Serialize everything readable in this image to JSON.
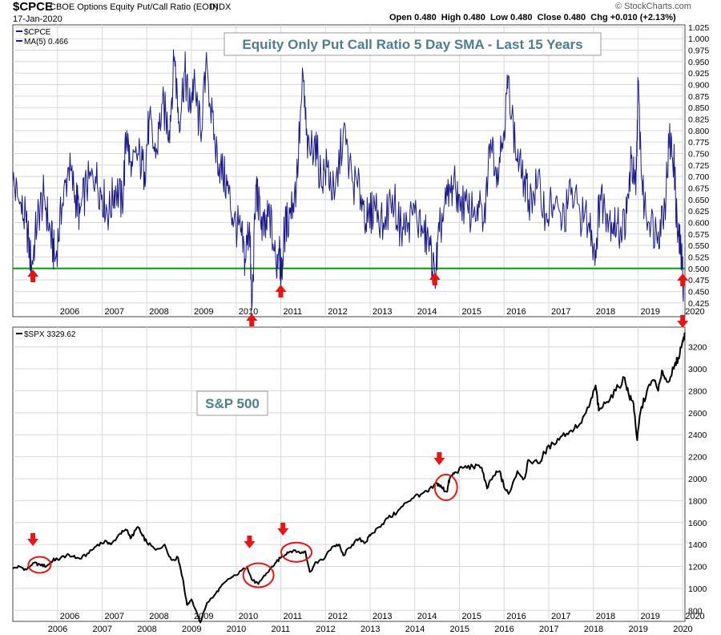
{
  "header": {
    "symbol": "$CPCE",
    "description": "CBOE Options Equity Put/Call Ratio (EOD)",
    "exchange": "INDX",
    "date": "17-Jan-2020",
    "quote": "Open 0.480  High 0.480  Low 0.480  Close 0.480  Chg +0.010 (+2.13%)",
    "watermark": "© StockCharts.com"
  },
  "colors": {
    "ratio_line": "#1a1a8c",
    "spx_line": "#000000",
    "threshold_line": "#00a000",
    "arrow": "#ee1111",
    "circle": "#ee1111",
    "title_text": "#4d7f8a",
    "grid": "#d8d8d8"
  },
  "chart_data": [
    {
      "type": "line",
      "panel": "top",
      "title": "Equity Only Put Call Ratio 5 Day SMA - Last 15 Years",
      "legend": {
        "position": "top-left",
        "entries": [
          "$CPCE",
          "MA(5) 0.466"
        ]
      },
      "ylim": [
        0.395,
        1.03
      ],
      "yticks": [
        "0.425",
        "0.450",
        "0.475",
        "0.500",
        "0.525",
        "0.550",
        "0.575",
        "0.600",
        "0.625",
        "0.650",
        "0.675",
        "0.700",
        "0.725",
        "0.750",
        "0.775",
        "0.800",
        "0.825",
        "0.850",
        "0.875",
        "0.900",
        "0.925",
        "0.950",
        "0.975",
        "1.000",
        "1.025"
      ],
      "xticks": [
        "2006",
        "2007",
        "2008",
        "2009",
        "2010",
        "2011",
        "2012",
        "2013",
        "2014",
        "2015",
        "2016",
        "2017",
        "2018",
        "2019",
        "2020"
      ],
      "xlim": [
        2005.0,
        2020.05
      ],
      "grid": true,
      "threshold": 0.5,
      "series": [
        {
          "values": [
            [
              2005.0,
              0.69
            ],
            [
              2005.15,
              0.64
            ],
            [
              2005.3,
              0.6
            ],
            [
              2005.42,
              0.5
            ],
            [
              2005.55,
              0.61
            ],
            [
              2005.7,
              0.66
            ],
            [
              2005.85,
              0.57
            ],
            [
              2005.95,
              0.52
            ],
            [
              2006.1,
              0.63
            ],
            [
              2006.25,
              0.72
            ],
            [
              2006.4,
              0.66
            ],
            [
              2006.5,
              0.62
            ],
            [
              2006.65,
              0.68
            ],
            [
              2006.85,
              0.7
            ],
            [
              2007.0,
              0.66
            ],
            [
              2007.15,
              0.62
            ],
            [
              2007.3,
              0.68
            ],
            [
              2007.45,
              0.64
            ],
            [
              2007.55,
              0.8
            ],
            [
              2007.65,
              0.7
            ],
            [
              2007.8,
              0.75
            ],
            [
              2007.95,
              0.71
            ],
            [
              2008.05,
              0.82
            ],
            [
              2008.2,
              0.74
            ],
            [
              2008.35,
              0.86
            ],
            [
              2008.5,
              0.8
            ],
            [
              2008.62,
              0.96
            ],
            [
              2008.72,
              0.82
            ],
            [
              2008.85,
              0.93
            ],
            [
              2008.95,
              0.85
            ],
            [
              2009.05,
              0.9
            ],
            [
              2009.2,
              0.8
            ],
            [
              2009.35,
              0.94
            ],
            [
              2009.5,
              0.78
            ],
            [
              2009.65,
              0.72
            ],
            [
              2009.8,
              0.68
            ],
            [
              2009.95,
              0.6
            ],
            [
              2010.1,
              0.58
            ],
            [
              2010.2,
              0.52
            ],
            [
              2010.3,
              0.6
            ],
            [
              2010.35,
              0.41
            ],
            [
              2010.45,
              0.68
            ],
            [
              2010.55,
              0.6
            ],
            [
              2010.65,
              0.58
            ],
            [
              2010.75,
              0.62
            ],
            [
              2010.9,
              0.5
            ],
            [
              2010.97,
              0.57
            ],
            [
              2011.0,
              0.46
            ],
            [
              2011.08,
              0.58
            ],
            [
              2011.2,
              0.62
            ],
            [
              2011.35,
              0.68
            ],
            [
              2011.5,
              0.92
            ],
            [
              2011.6,
              0.74
            ],
            [
              2011.75,
              0.78
            ],
            [
              2011.9,
              0.7
            ],
            [
              2012.05,
              0.72
            ],
            [
              2012.2,
              0.65
            ],
            [
              2012.4,
              0.8
            ],
            [
              2012.6,
              0.69
            ],
            [
              2012.8,
              0.66
            ],
            [
              2012.95,
              0.6
            ],
            [
              2013.1,
              0.64
            ],
            [
              2013.3,
              0.6
            ],
            [
              2013.5,
              0.66
            ],
            [
              2013.7,
              0.58
            ],
            [
              2013.85,
              0.6
            ],
            [
              2014.0,
              0.62
            ],
            [
              2014.2,
              0.58
            ],
            [
              2014.35,
              0.55
            ],
            [
              2014.45,
              0.47
            ],
            [
              2014.55,
              0.58
            ],
            [
              2014.7,
              0.64
            ],
            [
              2014.85,
              0.68
            ],
            [
              2015.0,
              0.66
            ],
            [
              2015.2,
              0.62
            ],
            [
              2015.4,
              0.64
            ],
            [
              2015.55,
              0.6
            ],
            [
              2015.7,
              0.78
            ],
            [
              2015.85,
              0.72
            ],
            [
              2016.0,
              0.8
            ],
            [
              2016.1,
              0.92
            ],
            [
              2016.25,
              0.76
            ],
            [
              2016.4,
              0.7
            ],
            [
              2016.55,
              0.65
            ],
            [
              2016.75,
              0.68
            ],
            [
              2016.95,
              0.62
            ],
            [
              2017.1,
              0.64
            ],
            [
              2017.3,
              0.6
            ],
            [
              2017.5,
              0.66
            ],
            [
              2017.7,
              0.62
            ],
            [
              2017.9,
              0.6
            ],
            [
              2018.05,
              0.54
            ],
            [
              2018.15,
              0.66
            ],
            [
              2018.3,
              0.62
            ],
            [
              2018.45,
              0.6
            ],
            [
              2018.6,
              0.58
            ],
            [
              2018.75,
              0.62
            ],
            [
              2018.85,
              0.74
            ],
            [
              2018.95,
              0.66
            ],
            [
              2019.0,
              0.9
            ],
            [
              2019.1,
              0.66
            ],
            [
              2019.25,
              0.6
            ],
            [
              2019.45,
              0.58
            ],
            [
              2019.6,
              0.64
            ],
            [
              2019.7,
              0.78
            ],
            [
              2019.8,
              0.74
            ],
            [
              2019.88,
              0.58
            ],
            [
              2019.95,
              0.54
            ],
            [
              2020.02,
              0.466
            ]
          ]
        }
      ],
      "markers": [
        2005.45,
        2010.35,
        2011.0,
        2014.45,
        2020.0
      ]
    },
    {
      "type": "line",
      "panel": "bottom",
      "title": "S&P 500",
      "legend": {
        "position": "top-left",
        "entries": [
          "$SPX 3329.62"
        ]
      },
      "ylim": [
        700,
        3380
      ],
      "yticks": [
        "800",
        "1000",
        "1200",
        "1400",
        "1600",
        "1800",
        "2000",
        "2200",
        "2400",
        "2600",
        "2800",
        "3000",
        "3200"
      ],
      "xticks": [
        "2006",
        "2007",
        "2008",
        "2009",
        "2010",
        "2011",
        "2012",
        "2013",
        "2014",
        "2015",
        "2016",
        "2017",
        "2018",
        "2019",
        "2020"
      ],
      "xlim": [
        2005.0,
        2020.05
      ],
      "grid": true,
      "series": [
        {
          "values": [
            [
              2005.0,
              1180
            ],
            [
              2005.15,
              1200
            ],
            [
              2005.3,
              1170
            ],
            [
              2005.45,
              1230
            ],
            [
              2005.6,
              1220
            ],
            [
              2005.75,
              1200
            ],
            [
              2005.9,
              1260
            ],
            [
              2006.0,
              1265
            ],
            [
              2006.2,
              1300
            ],
            [
              2006.35,
              1290
            ],
            [
              2006.5,
              1270
            ],
            [
              2006.7,
              1320
            ],
            [
              2006.9,
              1400
            ],
            [
              2007.1,
              1430
            ],
            [
              2007.2,
              1400
            ],
            [
              2007.4,
              1500
            ],
            [
              2007.55,
              1530
            ],
            [
              2007.65,
              1460
            ],
            [
              2007.8,
              1560
            ],
            [
              2007.9,
              1480
            ],
            [
              2008.0,
              1420
            ],
            [
              2008.2,
              1350
            ],
            [
              2008.4,
              1400
            ],
            [
              2008.55,
              1260
            ],
            [
              2008.7,
              1280
            ],
            [
              2008.8,
              1100
            ],
            [
              2008.9,
              850
            ],
            [
              2009.0,
              900
            ],
            [
              2009.15,
              740
            ],
            [
              2009.2,
              690
            ],
            [
              2009.35,
              870
            ],
            [
              2009.5,
              930
            ],
            [
              2009.65,
              1010
            ],
            [
              2009.85,
              1090
            ],
            [
              2010.0,
              1120
            ],
            [
              2010.25,
              1200
            ],
            [
              2010.35,
              1080
            ],
            [
              2010.5,
              1040
            ],
            [
              2010.6,
              1100
            ],
            [
              2010.75,
              1170
            ],
            [
              2010.9,
              1240
            ],
            [
              2011.0,
              1280
            ],
            [
              2011.15,
              1330
            ],
            [
              2011.3,
              1350
            ],
            [
              2011.45,
              1320
            ],
            [
              2011.55,
              1340
            ],
            [
              2011.65,
              1150
            ],
            [
              2011.8,
              1240
            ],
            [
              2011.95,
              1260
            ],
            [
              2012.15,
              1380
            ],
            [
              2012.3,
              1400
            ],
            [
              2012.4,
              1300
            ],
            [
              2012.6,
              1400
            ],
            [
              2012.75,
              1450
            ],
            [
              2012.9,
              1420
            ],
            [
              2013.0,
              1480
            ],
            [
              2013.2,
              1560
            ],
            [
              2013.4,
              1640
            ],
            [
              2013.6,
              1690
            ],
            [
              2013.8,
              1780
            ],
            [
              2014.0,
              1840
            ],
            [
              2014.15,
              1860
            ],
            [
              2014.3,
              1880
            ],
            [
              2014.5,
              1960
            ],
            [
              2014.6,
              1920
            ],
            [
              2014.72,
              1880
            ],
            [
              2014.78,
              2000
            ],
            [
              2014.9,
              2060
            ],
            [
              2015.1,
              2100
            ],
            [
              2015.3,
              2110
            ],
            [
              2015.5,
              2100
            ],
            [
              2015.62,
              1910
            ],
            [
              2015.75,
              2020
            ],
            [
              2015.9,
              2070
            ],
            [
              2016.0,
              1920
            ],
            [
              2016.1,
              1860
            ],
            [
              2016.3,
              2070
            ],
            [
              2016.45,
              2000
            ],
            [
              2016.55,
              2170
            ],
            [
              2016.8,
              2140
            ],
            [
              2016.9,
              2240
            ],
            [
              2017.1,
              2320
            ],
            [
              2017.3,
              2390
            ],
            [
              2017.5,
              2440
            ],
            [
              2017.7,
              2500
            ],
            [
              2017.9,
              2650
            ],
            [
              2018.05,
              2850
            ],
            [
              2018.12,
              2620
            ],
            [
              2018.3,
              2700
            ],
            [
              2018.5,
              2800
            ],
            [
              2018.7,
              2920
            ],
            [
              2018.8,
              2750
            ],
            [
              2018.9,
              2680
            ],
            [
              2018.98,
              2350
            ],
            [
              2019.05,
              2600
            ],
            [
              2019.2,
              2800
            ],
            [
              2019.35,
              2900
            ],
            [
              2019.45,
              2800
            ],
            [
              2019.55,
              2980
            ],
            [
              2019.65,
              2880
            ],
            [
              2019.8,
              3000
            ],
            [
              2019.9,
              3100
            ],
            [
              2020.0,
              3260
            ],
            [
              2020.05,
              3330
            ]
          ]
        }
      ],
      "markers": [
        2005.45,
        2010.3,
        2011.05,
        2014.55
      ],
      "circles": [
        [
          2005.6,
          1215,
          14,
          10
        ],
        [
          2010.5,
          1120,
          19,
          15
        ],
        [
          2011.35,
          1330,
          19,
          12
        ],
        [
          2014.7,
          1920,
          14,
          16
        ]
      ]
    }
  ],
  "axis_labels_bottom": [
    "2006",
    "2007",
    "2008",
    "2009",
    "2010",
    "2011",
    "2012",
    "2013",
    "2014",
    "2015",
    "2016",
    "2017",
    "2018",
    "2019",
    "2020"
  ]
}
